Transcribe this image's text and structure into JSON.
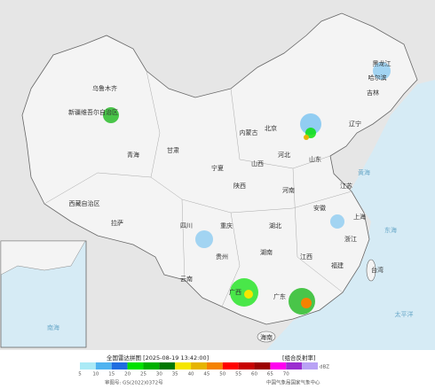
{
  "map": {
    "labels": [
      "新疆维吾尔自治区",
      "乌鲁木齐",
      "西藏自治区",
      "拉萨",
      "青海",
      "甘肃",
      "内蒙古",
      "黑龙江",
      "哈尔滨",
      "吉林",
      "辽宁",
      "北京",
      "河北",
      "山西",
      "陕西",
      "宁夏",
      "四川",
      "重庆",
      "湖北",
      "湖南",
      "河南",
      "山东",
      "江苏",
      "安徽",
      "上海",
      "浙江",
      "江西",
      "福建",
      "贵州",
      "云南",
      "广西",
      "广东",
      "台湾",
      "海南"
    ],
    "seas": [
      "黄海",
      "东海",
      "太平洋",
      "南海"
    ]
  },
  "legend": {
    "title": "全国雷达拼图 [2025-08-19 13:42:00]",
    "product": "[组合反射率]",
    "unit": "dBZ",
    "levels": [
      5,
      10,
      15,
      20,
      25,
      30,
      35,
      40,
      45,
      50,
      55,
      60,
      65,
      70
    ],
    "colors": [
      "#aaeaf6",
      "#4fb3f0",
      "#1f6de0",
      "#00e100",
      "#00b000",
      "#007800",
      "#f5e600",
      "#e6b400",
      "#f58200",
      "#ff0000",
      "#c80000",
      "#9c0000",
      "#ff00f0",
      "#9b2fd0",
      "#b9a2f5"
    ]
  },
  "footer": {
    "approval": "审图号: GS(2022)0372号",
    "source": "中国气象局国家气象中心"
  }
}
